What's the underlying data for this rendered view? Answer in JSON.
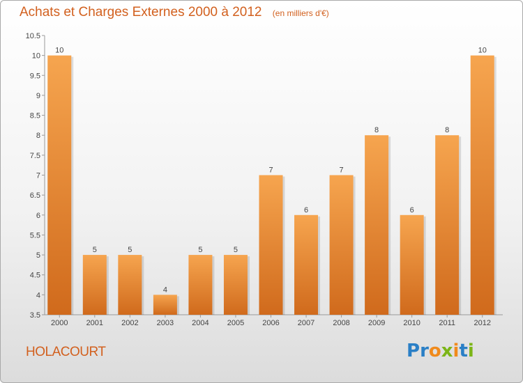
{
  "colors": {
    "accent": "#d2601e",
    "bar_light": "#f6a54f",
    "bar_dark": "#d06a1c",
    "logo_blue": "#2a7fc6",
    "logo_orange": "#f08a1c",
    "logo_green": "#7cb518"
  },
  "header": {
    "title": "Achats et Charges Externes 2000 à 2012",
    "subtitle": "(en milliers d'€)"
  },
  "footer": {
    "commune": "HOLACOURT",
    "logo_text": "Proxiti"
  },
  "chart_data": {
    "type": "bar",
    "title": "Achats et Charges Externes 2000 à 2012",
    "subtitle": "(en milliers d'€)",
    "categories": [
      "2000",
      "2001",
      "2002",
      "2003",
      "2004",
      "2005",
      "2006",
      "2007",
      "2008",
      "2009",
      "2010",
      "2011",
      "2012"
    ],
    "values": [
      10,
      5,
      5,
      4,
      5,
      5,
      7,
      6,
      7,
      8,
      6,
      8,
      10
    ],
    "data_labels": [
      "10",
      "5",
      "5",
      "4",
      "5",
      "5",
      "7",
      "6",
      "7",
      "8",
      "6",
      "8",
      "10"
    ],
    "ylim": [
      3.5,
      10.5
    ],
    "yticks": [
      "3.5",
      "4",
      "4.5",
      "5",
      "5.5",
      "6",
      "6.5",
      "7",
      "7.5",
      "8",
      "8.5",
      "9",
      "9.5",
      "10",
      "10.5"
    ],
    "xlabel": "",
    "ylabel": "",
    "grid": false,
    "legend": "none"
  }
}
